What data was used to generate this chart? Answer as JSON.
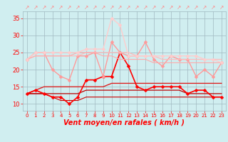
{
  "x": [
    0,
    1,
    2,
    3,
    4,
    5,
    6,
    7,
    8,
    9,
    10,
    11,
    12,
    13,
    14,
    15,
    16,
    17,
    18,
    19,
    20,
    21,
    22,
    23
  ],
  "series": [
    {
      "name": "dark_red_line1",
      "color": "#cc0000",
      "linewidth": 0.8,
      "marker": null,
      "markersize": 0,
      "values": [
        13,
        13,
        13,
        12,
        11,
        11,
        11,
        12,
        12,
        12,
        12,
        12,
        12,
        12,
        12,
        12,
        12,
        12,
        12,
        12,
        12,
        12,
        12,
        12
      ]
    },
    {
      "name": "dark_red_line2",
      "color": "#bb0000",
      "linewidth": 0.9,
      "marker": null,
      "markersize": 0,
      "values": [
        13,
        13,
        13,
        13,
        13,
        13,
        13,
        14,
        14,
        14,
        14,
        14,
        14,
        14,
        14,
        14,
        14,
        14,
        14,
        13,
        13,
        13,
        13,
        13
      ]
    },
    {
      "name": "medium_red_rising",
      "color": "#dd2222",
      "linewidth": 1.0,
      "marker": null,
      "markersize": 0,
      "values": [
        13,
        14,
        15,
        15,
        15,
        15,
        15,
        15,
        15,
        15,
        16,
        16,
        16,
        16,
        16,
        16,
        16,
        16,
        16,
        16,
        16,
        16,
        16,
        16
      ]
    },
    {
      "name": "bright_red_spiky",
      "color": "#ff0000",
      "linewidth": 1.2,
      "marker": "D",
      "markersize": 2.5,
      "values": [
        13,
        14,
        13,
        12,
        12,
        10,
        12,
        17,
        17,
        18,
        18,
        25,
        21,
        15,
        14,
        15,
        15,
        15,
        15,
        13,
        14,
        14,
        12,
        12
      ]
    },
    {
      "name": "light_pink_upper",
      "color": "#ff9999",
      "linewidth": 1.0,
      "marker": "D",
      "markersize": 2.5,
      "values": [
        23,
        25,
        25,
        20,
        18,
        17,
        24,
        24,
        25,
        18,
        28,
        25,
        24,
        24,
        28,
        23,
        21,
        24,
        23,
        23,
        18,
        20,
        18,
        22
      ]
    },
    {
      "name": "pale_pink_flat",
      "color": "#ffbbbb",
      "linewidth": 0.9,
      "marker": null,
      "markersize": 0,
      "values": [
        23,
        24,
        24,
        24,
        24,
        24,
        24,
        25,
        25,
        25,
        25,
        25,
        25,
        24,
        24,
        24,
        23,
        23,
        23,
        23,
        23,
        23,
        23,
        23
      ]
    },
    {
      "name": "pale_pink_declining",
      "color": "#ffaaaa",
      "linewidth": 0.8,
      "marker": null,
      "markersize": 0,
      "values": [
        23,
        24,
        24,
        24,
        24,
        24,
        25,
        25,
        25,
        24,
        24,
        23,
        23,
        23,
        23,
        22,
        22,
        22,
        22,
        22,
        22,
        22,
        22,
        22
      ]
    },
    {
      "name": "lightest_pink_peak",
      "color": "#ffcccc",
      "linewidth": 1.0,
      "marker": "D",
      "markersize": 2.5,
      "values": [
        23,
        25,
        25,
        25,
        25,
        25,
        25,
        26,
        26,
        26,
        35,
        33,
        24,
        24,
        24,
        24,
        24,
        24,
        24,
        24,
        24,
        23,
        23,
        22
      ]
    }
  ],
  "xlabel": "Vent moyen/en rafales ( km/h )",
  "xlim_left": -0.5,
  "xlim_right": 23.5,
  "ylim": [
    8,
    37
  ],
  "yticks": [
    10,
    15,
    20,
    25,
    30,
    35
  ],
  "xticks": [
    0,
    1,
    2,
    3,
    4,
    5,
    6,
    7,
    8,
    9,
    10,
    11,
    12,
    13,
    14,
    15,
    16,
    17,
    18,
    19,
    20,
    21,
    22,
    23
  ],
  "background_color": "#d0eef0",
  "grid_color": "#a0b8c0",
  "tick_color": "#ff0000",
  "xlabel_color": "#ff0000",
  "xlabel_fontsize": 7,
  "ytick_fontsize": 6,
  "xtick_fontsize": 5,
  "arrow_color": "#ff8888"
}
